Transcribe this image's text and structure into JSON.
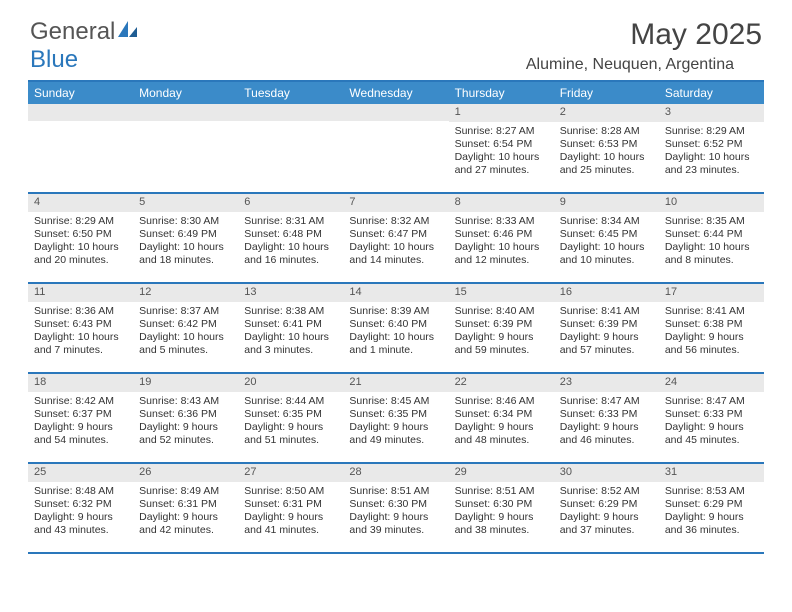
{
  "brand": {
    "name_part1": "General",
    "name_part2": "Blue",
    "icon_color": "#2a77bb"
  },
  "title": "May 2025",
  "location": "Alumine, Neuquen, Argentina",
  "colors": {
    "header_bg": "#3b8bc9",
    "border": "#2a77bb",
    "daynum_bg": "#e9e9e9",
    "text": "#333333"
  },
  "day_headers": [
    "Sunday",
    "Monday",
    "Tuesday",
    "Wednesday",
    "Thursday",
    "Friday",
    "Saturday"
  ],
  "weeks": [
    [
      {
        "n": "",
        "sr": "",
        "ss": "",
        "dl": ""
      },
      {
        "n": "",
        "sr": "",
        "ss": "",
        "dl": ""
      },
      {
        "n": "",
        "sr": "",
        "ss": "",
        "dl": ""
      },
      {
        "n": "",
        "sr": "",
        "ss": "",
        "dl": ""
      },
      {
        "n": "1",
        "sr": "Sunrise: 8:27 AM",
        "ss": "Sunset: 6:54 PM",
        "dl": "Daylight: 10 hours and 27 minutes."
      },
      {
        "n": "2",
        "sr": "Sunrise: 8:28 AM",
        "ss": "Sunset: 6:53 PM",
        "dl": "Daylight: 10 hours and 25 minutes."
      },
      {
        "n": "3",
        "sr": "Sunrise: 8:29 AM",
        "ss": "Sunset: 6:52 PM",
        "dl": "Daylight: 10 hours and 23 minutes."
      }
    ],
    [
      {
        "n": "4",
        "sr": "Sunrise: 8:29 AM",
        "ss": "Sunset: 6:50 PM",
        "dl": "Daylight: 10 hours and 20 minutes."
      },
      {
        "n": "5",
        "sr": "Sunrise: 8:30 AM",
        "ss": "Sunset: 6:49 PM",
        "dl": "Daylight: 10 hours and 18 minutes."
      },
      {
        "n": "6",
        "sr": "Sunrise: 8:31 AM",
        "ss": "Sunset: 6:48 PM",
        "dl": "Daylight: 10 hours and 16 minutes."
      },
      {
        "n": "7",
        "sr": "Sunrise: 8:32 AM",
        "ss": "Sunset: 6:47 PM",
        "dl": "Daylight: 10 hours and 14 minutes."
      },
      {
        "n": "8",
        "sr": "Sunrise: 8:33 AM",
        "ss": "Sunset: 6:46 PM",
        "dl": "Daylight: 10 hours and 12 minutes."
      },
      {
        "n": "9",
        "sr": "Sunrise: 8:34 AM",
        "ss": "Sunset: 6:45 PM",
        "dl": "Daylight: 10 hours and 10 minutes."
      },
      {
        "n": "10",
        "sr": "Sunrise: 8:35 AM",
        "ss": "Sunset: 6:44 PM",
        "dl": "Daylight: 10 hours and 8 minutes."
      }
    ],
    [
      {
        "n": "11",
        "sr": "Sunrise: 8:36 AM",
        "ss": "Sunset: 6:43 PM",
        "dl": "Daylight: 10 hours and 7 minutes."
      },
      {
        "n": "12",
        "sr": "Sunrise: 8:37 AM",
        "ss": "Sunset: 6:42 PM",
        "dl": "Daylight: 10 hours and 5 minutes."
      },
      {
        "n": "13",
        "sr": "Sunrise: 8:38 AM",
        "ss": "Sunset: 6:41 PM",
        "dl": "Daylight: 10 hours and 3 minutes."
      },
      {
        "n": "14",
        "sr": "Sunrise: 8:39 AM",
        "ss": "Sunset: 6:40 PM",
        "dl": "Daylight: 10 hours and 1 minute."
      },
      {
        "n": "15",
        "sr": "Sunrise: 8:40 AM",
        "ss": "Sunset: 6:39 PM",
        "dl": "Daylight: 9 hours and 59 minutes."
      },
      {
        "n": "16",
        "sr": "Sunrise: 8:41 AM",
        "ss": "Sunset: 6:39 PM",
        "dl": "Daylight: 9 hours and 57 minutes."
      },
      {
        "n": "17",
        "sr": "Sunrise: 8:41 AM",
        "ss": "Sunset: 6:38 PM",
        "dl": "Daylight: 9 hours and 56 minutes."
      }
    ],
    [
      {
        "n": "18",
        "sr": "Sunrise: 8:42 AM",
        "ss": "Sunset: 6:37 PM",
        "dl": "Daylight: 9 hours and 54 minutes."
      },
      {
        "n": "19",
        "sr": "Sunrise: 8:43 AM",
        "ss": "Sunset: 6:36 PM",
        "dl": "Daylight: 9 hours and 52 minutes."
      },
      {
        "n": "20",
        "sr": "Sunrise: 8:44 AM",
        "ss": "Sunset: 6:35 PM",
        "dl": "Daylight: 9 hours and 51 minutes."
      },
      {
        "n": "21",
        "sr": "Sunrise: 8:45 AM",
        "ss": "Sunset: 6:35 PM",
        "dl": "Daylight: 9 hours and 49 minutes."
      },
      {
        "n": "22",
        "sr": "Sunrise: 8:46 AM",
        "ss": "Sunset: 6:34 PM",
        "dl": "Daylight: 9 hours and 48 minutes."
      },
      {
        "n": "23",
        "sr": "Sunrise: 8:47 AM",
        "ss": "Sunset: 6:33 PM",
        "dl": "Daylight: 9 hours and 46 minutes."
      },
      {
        "n": "24",
        "sr": "Sunrise: 8:47 AM",
        "ss": "Sunset: 6:33 PM",
        "dl": "Daylight: 9 hours and 45 minutes."
      }
    ],
    [
      {
        "n": "25",
        "sr": "Sunrise: 8:48 AM",
        "ss": "Sunset: 6:32 PM",
        "dl": "Daylight: 9 hours and 43 minutes."
      },
      {
        "n": "26",
        "sr": "Sunrise: 8:49 AM",
        "ss": "Sunset: 6:31 PM",
        "dl": "Daylight: 9 hours and 42 minutes."
      },
      {
        "n": "27",
        "sr": "Sunrise: 8:50 AM",
        "ss": "Sunset: 6:31 PM",
        "dl": "Daylight: 9 hours and 41 minutes."
      },
      {
        "n": "28",
        "sr": "Sunrise: 8:51 AM",
        "ss": "Sunset: 6:30 PM",
        "dl": "Daylight: 9 hours and 39 minutes."
      },
      {
        "n": "29",
        "sr": "Sunrise: 8:51 AM",
        "ss": "Sunset: 6:30 PM",
        "dl": "Daylight: 9 hours and 38 minutes."
      },
      {
        "n": "30",
        "sr": "Sunrise: 8:52 AM",
        "ss": "Sunset: 6:29 PM",
        "dl": "Daylight: 9 hours and 37 minutes."
      },
      {
        "n": "31",
        "sr": "Sunrise: 8:53 AM",
        "ss": "Sunset: 6:29 PM",
        "dl": "Daylight: 9 hours and 36 minutes."
      }
    ]
  ]
}
